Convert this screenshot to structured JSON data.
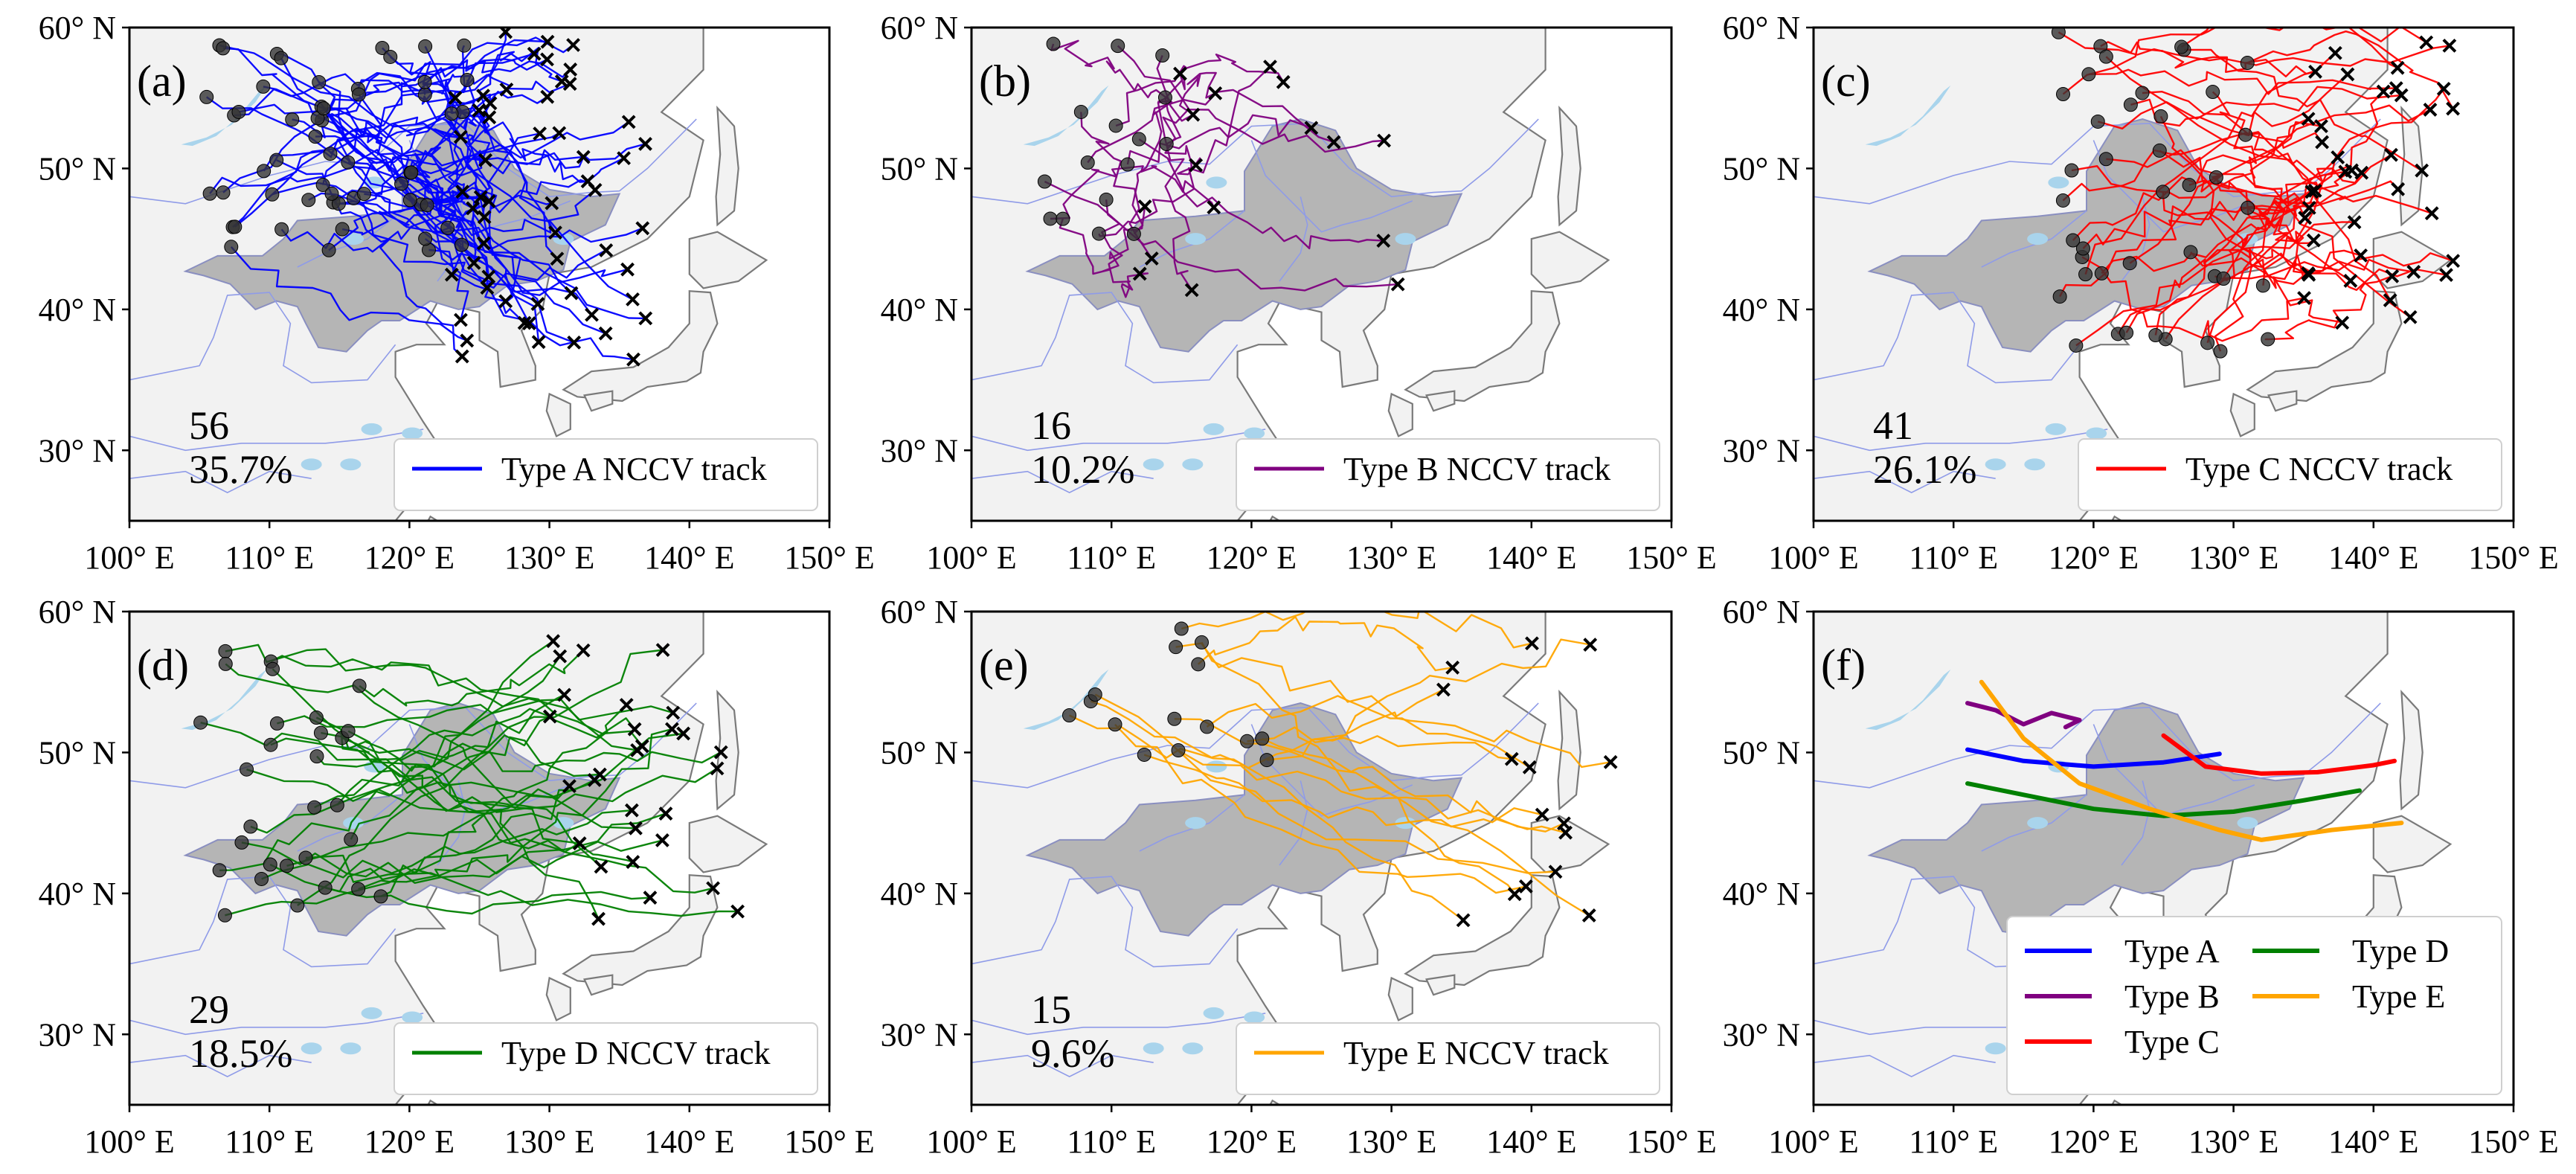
{
  "figure": {
    "x_ticks": [
      "100° E",
      "110° E",
      "120° E",
      "130° E",
      "140° E",
      "150° E"
    ],
    "y_ticks": [
      "60° N",
      "50° N",
      "40° N",
      "30° N"
    ],
    "colors": {
      "land": "#f2f2f2",
      "region": "#b5b5b5",
      "lake": "#a9d4ec",
      "river": "#8f9be8",
      "coast": "#7a7a7a",
      "genesis_marker": "#333333",
      "lysis_marker": "#000000"
    }
  },
  "chart_data": [
    {
      "type": "map-tracks",
      "panel": "(a)",
      "track_type": "Type A",
      "color": "#0000ff",
      "count": "56",
      "percent": "35.7%",
      "legend": "Type A NCCV track",
      "lon_range": [
        100,
        150
      ],
      "lat_range": [
        25,
        60
      ],
      "n_tracks": 56,
      "genesis_box": {
        "lon": [
          105,
          125
        ],
        "lat": [
          44,
          59
        ]
      },
      "lysis_box": {
        "lon": [
          123,
          137
        ],
        "lat": [
          36,
          60
        ]
      }
    },
    {
      "type": "map-tracks",
      "panel": "(b)",
      "track_type": "Type B",
      "color": "#800080",
      "count": "16",
      "percent": "10.2%",
      "legend": "Type B NCCV track",
      "lon_range": [
        100,
        150
      ],
      "lat_range": [
        25,
        60
      ],
      "n_tracks": 16,
      "genesis_box": {
        "lon": [
          105,
          114
        ],
        "lat": [
          45,
          60
        ]
      },
      "lysis_box": {
        "lon": [
          110,
          132
        ],
        "lat": [
          41,
          59
        ]
      }
    },
    {
      "type": "map-tracks",
      "panel": "(c)",
      "track_type": "Type C",
      "color": "#ff0000",
      "count": "41",
      "percent": "26.1%",
      "legend": "Type C NCCV track",
      "lon_range": [
        100,
        150
      ],
      "lat_range": [
        25,
        60
      ],
      "n_tracks": 41,
      "genesis_box": {
        "lon": [
          117,
          133
        ],
        "lat": [
          37,
          60
        ]
      },
      "lysis_box": {
        "lon": [
          135,
          146
        ],
        "lat": [
          39,
          59
        ]
      }
    },
    {
      "type": "map-tracks",
      "panel": "(d)",
      "track_type": "Type D",
      "color": "#008000",
      "count": "29",
      "percent": "18.5%",
      "legend": "Type D NCCV track",
      "lon_range": [
        100,
        150
      ],
      "lat_range": [
        25,
        60
      ],
      "n_tracks": 29,
      "genesis_box": {
        "lon": [
          105,
          118
        ],
        "lat": [
          38,
          58
        ]
      },
      "lysis_box": {
        "lon": [
          130,
          145
        ],
        "lat": [
          38,
          58
        ]
      }
    },
    {
      "type": "map-tracks",
      "panel": "(e)",
      "track_type": "Type E",
      "color": "#ffa500",
      "count": "15",
      "percent": "9.6%",
      "legend": "Type E NCCV track",
      "lon_range": [
        100,
        150
      ],
      "lat_range": [
        25,
        60
      ],
      "n_tracks": 15,
      "genesis_box": {
        "lon": [
          105,
          122
        ],
        "lat": [
          49,
          59
        ]
      },
      "lysis_box": {
        "lon": [
          133,
          146
        ],
        "lat": [
          38,
          59
        ]
      }
    },
    {
      "type": "map-mean-tracks",
      "panel": "(f)",
      "lon_range": [
        100,
        150
      ],
      "lat_range": [
        25,
        60
      ],
      "series": [
        {
          "name": "Type A",
          "color": "#0000ff",
          "lon": [
            111,
            115,
            120,
            125,
            129
          ],
          "lat": [
            50.2,
            49.4,
            49.0,
            49.3,
            49.9
          ]
        },
        {
          "name": "Type B",
          "color": "#800080",
          "lon": [
            111,
            113,
            115,
            117,
            119,
            118
          ],
          "lat": [
            53.5,
            53.0,
            52.0,
            52.8,
            52.3,
            51.8
          ]
        },
        {
          "name": "Type C",
          "color": "#ff0000",
          "lon": [
            125,
            128,
            132,
            136,
            140,
            141.5
          ],
          "lat": [
            51.2,
            49.0,
            48.5,
            48.6,
            49.1,
            49.4
          ]
        },
        {
          "name": "Type D",
          "color": "#008000",
          "lon": [
            111,
            115,
            120,
            125,
            130,
            135,
            139
          ],
          "lat": [
            47.8,
            47.0,
            46.0,
            45.5,
            45.8,
            46.6,
            47.3
          ]
        },
        {
          "name": "Type E",
          "color": "#ffa500",
          "lon": [
            112,
            115,
            119,
            124,
            129,
            132,
            137,
            142
          ],
          "lat": [
            55.0,
            51.0,
            47.8,
            46.0,
            44.5,
            43.8,
            44.5,
            45.0
          ]
        }
      ]
    }
  ]
}
